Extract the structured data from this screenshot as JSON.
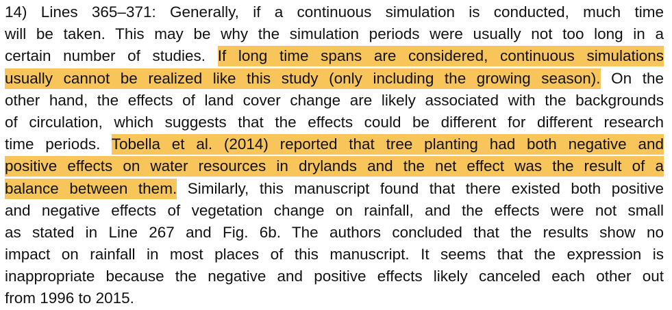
{
  "document": {
    "highlight_color": "#f8c55a",
    "text_color": "#111111",
    "lines": [
      [
        {
          "text": "14) Lines 365–371: Generally, if a continuous simulation is conducted, much time",
          "hl": false
        }
      ],
      [
        {
          "text": "will be taken. This may be why the simulation periods were usually not too long in a",
          "hl": false
        }
      ],
      [
        {
          "text": "certain number of studies. ",
          "hl": false
        },
        {
          "text": "If long time spans are considered, continuous simulations",
          "hl": true
        }
      ],
      [
        {
          "text": "usually cannot be realized like this study (only including the growing season).",
          "hl": true
        },
        {
          "text": " On the",
          "hl": false
        }
      ],
      [
        {
          "text": "other hand, the effects of land cover change are likely associated with the backgrounds",
          "hl": false
        }
      ],
      [
        {
          "text": "of circulation, which suggests that the effects could be different for different research",
          "hl": false
        }
      ],
      [
        {
          "text": "time periods. ",
          "hl": false
        },
        {
          "text": "Tobella et al. (2014) reported that tree planting had both negative and",
          "hl": true
        }
      ],
      [
        {
          "text": "positive effects on water resources in drylands and the net effect was the result of a",
          "hl": true
        }
      ],
      [
        {
          "text": "balance between them.",
          "hl": true
        },
        {
          "text": " Similarly, this manuscript found that there existed both positive",
          "hl": false
        }
      ],
      [
        {
          "text": "and negative effects of vegetation change on rainfall, and the effects were not small",
          "hl": false
        }
      ],
      [
        {
          "text": "as stated in Line 267 and Fig. 6b. The authors concluded that the results show no",
          "hl": false
        }
      ],
      [
        {
          "text": "impact on rainfall in most places of this manuscript. It seems that the expression is",
          "hl": false
        }
      ],
      [
        {
          "text": "inappropriate because the negative and positive effects likely canceled each other out",
          "hl": false
        }
      ],
      [
        {
          "text": "from 1996 to 2015.",
          "hl": false
        }
      ]
    ]
  }
}
